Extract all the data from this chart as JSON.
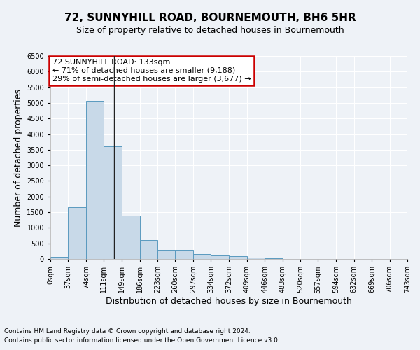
{
  "title": "72, SUNNYHILL ROAD, BOURNEMOUTH, BH6 5HR",
  "subtitle": "Size of property relative to detached houses in Bournemouth",
  "xlabel": "Distribution of detached houses by size in Bournemouth",
  "ylabel": "Number of detached properties",
  "footnote1": "Contains HM Land Registry data © Crown copyright and database right 2024.",
  "footnote2": "Contains public sector information licensed under the Open Government Licence v3.0.",
  "bin_labels": [
    "0sqm",
    "37sqm",
    "74sqm",
    "111sqm",
    "149sqm",
    "186sqm",
    "223sqm",
    "260sqm",
    "297sqm",
    "334sqm",
    "372sqm",
    "409sqm",
    "446sqm",
    "483sqm",
    "520sqm",
    "557sqm",
    "594sqm",
    "632sqm",
    "669sqm",
    "706sqm",
    "743sqm"
  ],
  "bar_values": [
    70,
    1650,
    5060,
    3600,
    1390,
    600,
    290,
    290,
    150,
    110,
    80,
    50,
    30,
    0,
    0,
    0,
    0,
    0,
    0,
    0
  ],
  "bar_color": "#c8d9e8",
  "bar_edge_color": "#5a9abf",
  "annotation_box_text": "72 SUNNYHILL ROAD: 133sqm\n← 71% of detached houses are smaller (9,188)\n29% of semi-detached houses are larger (3,677) →",
  "annotation_box_color": "#ffffff",
  "annotation_box_edge_color": "#cc0000",
  "vline_x": 133,
  "bin_edges": [
    0,
    37,
    74,
    111,
    149,
    186,
    223,
    260,
    297,
    334,
    372,
    409,
    446,
    483,
    520,
    557,
    594,
    632,
    669,
    706,
    743
  ],
  "ylim": [
    0,
    6500
  ],
  "yticks": [
    0,
    500,
    1000,
    1500,
    2000,
    2500,
    3000,
    3500,
    4000,
    4500,
    5000,
    5500,
    6000,
    6500
  ],
  "background_color": "#eef2f7",
  "grid_color": "#ffffff",
  "title_fontsize": 11,
  "subtitle_fontsize": 9,
  "axis_label_fontsize": 9,
  "tick_fontsize": 7,
  "footnote_fontsize": 6.5,
  "annotation_fontsize": 8
}
